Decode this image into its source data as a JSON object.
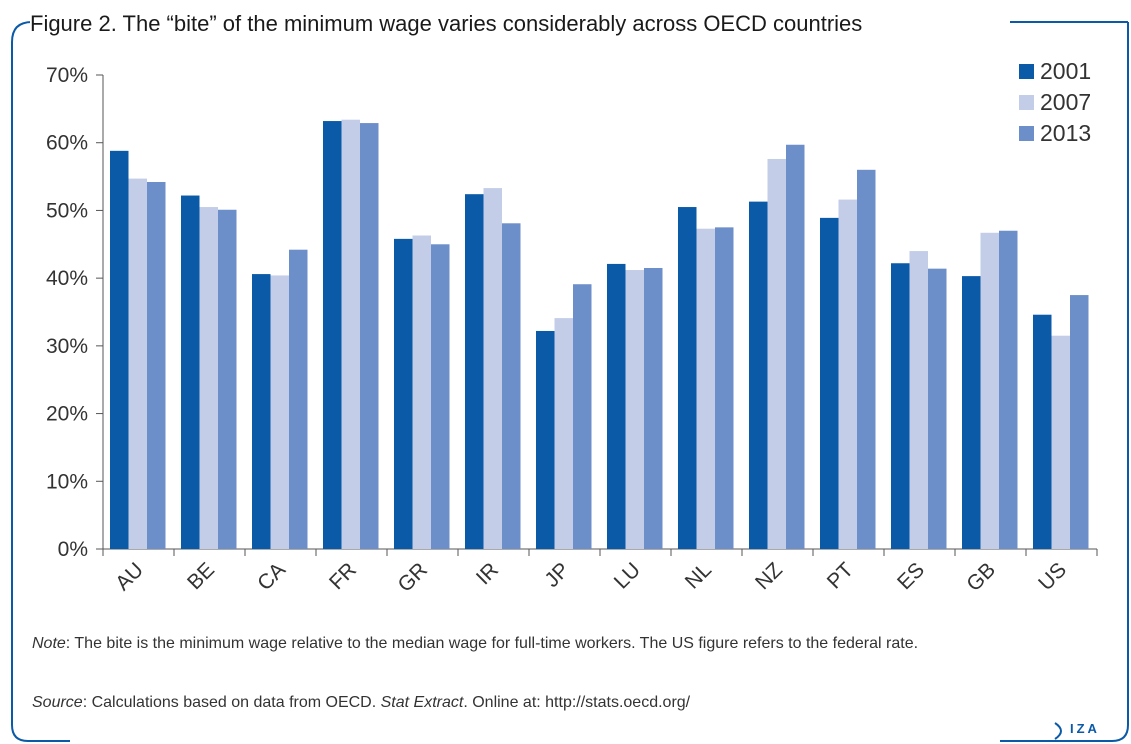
{
  "figure": {
    "title": "Figure 2. The “bite” of the minimum wage varies considerably across OECD countries",
    "note_label": "Note",
    "note_text": ": The bite is the minimum wage relative to the median wage for full-time workers. The US figure refers to the federal rate.",
    "source_label": "Source",
    "source_text_1": ": Calculations based on data from OECD. ",
    "source_italic": "Stat Extract",
    "source_text_2": ". Online at: http://stats.oecd.org/",
    "logo_text": "IZA"
  },
  "chart_data": {
    "type": "bar",
    "title": "",
    "xlabel": "",
    "ylabel": "",
    "categories": [
      "AU",
      "BE",
      "CA",
      "FR",
      "GR",
      "IR",
      "JP",
      "LU",
      "NL",
      "NZ",
      "PT",
      "ES",
      "GB",
      "US"
    ],
    "series": [
      {
        "name": "2001",
        "color": "#0b5aa8",
        "values": [
          58.8,
          52.2,
          40.6,
          63.2,
          45.8,
          52.4,
          32.2,
          42.1,
          50.5,
          51.3,
          48.9,
          42.2,
          40.3,
          34.6
        ]
      },
      {
        "name": "2007",
        "color": "#c3cde8",
        "values": [
          54.7,
          50.5,
          40.4,
          63.4,
          46.3,
          53.3,
          34.1,
          41.2,
          47.3,
          57.6,
          51.6,
          44.0,
          46.7,
          31.5
        ]
      },
      {
        "name": "2013",
        "color": "#6c8ec9",
        "values": [
          54.2,
          50.1,
          44.2,
          62.9,
          45.0,
          48.1,
          39.1,
          41.5,
          47.5,
          59.7,
          56.0,
          41.4,
          47.0,
          37.5
        ]
      }
    ],
    "ylim": [
      0,
      70
    ],
    "yticks": [
      0,
      10,
      20,
      30,
      40,
      50,
      60,
      70
    ],
    "ytick_labels": [
      "0%",
      "10%",
      "20%",
      "30%",
      "40%",
      "50%",
      "60%",
      "70%"
    ],
    "legend_position": "top-right",
    "grid": false
  }
}
